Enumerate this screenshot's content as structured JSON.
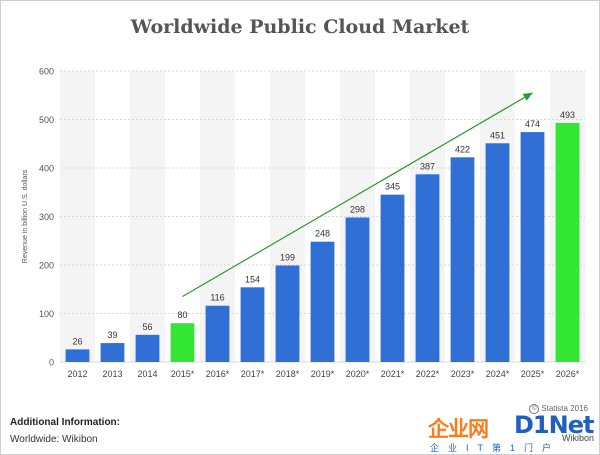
{
  "chart_data": {
    "type": "bar",
    "title": "Worldwide Public Cloud Market",
    "ylabel": "Revenue in billion U.S. dollars",
    "ylim": [
      0,
      600
    ],
    "yticks": [
      0,
      100,
      200,
      300,
      400,
      500,
      600
    ],
    "categories": [
      "2012",
      "2013",
      "2014",
      "2015*",
      "2016*",
      "2017*",
      "2018*",
      "2019*",
      "2020*",
      "2021*",
      "2022*",
      "2023*",
      "2024*",
      "2025*",
      "2026*"
    ],
    "values": [
      26,
      39,
      56,
      80,
      116,
      154,
      199,
      248,
      298,
      345,
      387,
      422,
      451,
      474,
      493
    ],
    "bar_colors": [
      "#2f6fd6",
      "#2f6fd6",
      "#2f6fd6",
      "#33e633",
      "#2f6fd6",
      "#2f6fd6",
      "#2f6fd6",
      "#2f6fd6",
      "#2f6fd6",
      "#2f6fd6",
      "#2f6fd6",
      "#2f6fd6",
      "#2f6fd6",
      "#2f6fd6",
      "#33e633"
    ],
    "trend_arrow": {
      "from": {
        "x": "2015*",
        "y": 135
      },
      "to": {
        "x": "2025*",
        "y": 555
      },
      "color": "#2b9a2b"
    },
    "grid": true,
    "legend": "none"
  },
  "footer": {
    "info_title": "Additional Information:",
    "info_line": "Worldwide: Wikibon",
    "credit": "Statista 2016",
    "credit_mark": "©"
  },
  "watermark": {
    "cn": "企业网",
    "latin": "D1Net",
    "sub": "企业IT第1门户",
    "small": "Wikibon"
  }
}
